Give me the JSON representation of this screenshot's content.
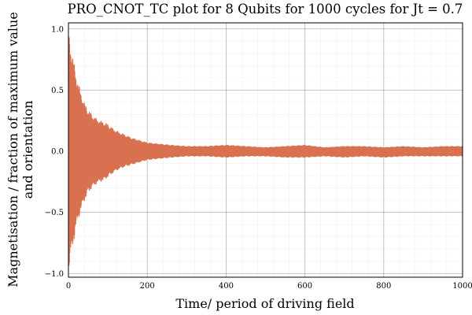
{
  "chart_data": {
    "type": "line",
    "title": "PRO_CNOT_TC plot for 8 Qubits for 1000 cycles for Jt = 0.7",
    "xlabel": "Time/ period of driving field",
    "ylabel_line1": "Magnetisation / fraction of maximum value",
    "ylabel_line2": "and orientation",
    "xlim": [
      0,
      1000
    ],
    "ylim": [
      -1.03,
      1.05
    ],
    "xticks": [
      0,
      200,
      400,
      600,
      800,
      1000
    ],
    "xtick_labels": [
      "0",
      "200",
      "400",
      "600",
      "800",
      "1000"
    ],
    "yticks": [
      -1.0,
      -0.5,
      0.0,
      0.5,
      1.0
    ],
    "ytick_labels": [
      "−1.0",
      "−0.5",
      "0.0",
      "0.5",
      "1.0"
    ],
    "grid": true,
    "legend": "none",
    "series_color": "#d9704f",
    "series": [
      {
        "note": "rapidly alternating signal; envelope (positive half-amplitude) sampled at x",
        "x": [
          0,
          10,
          20,
          30,
          40,
          50,
          60,
          70,
          80,
          90,
          100,
          120,
          140,
          160,
          180,
          200,
          230,
          260,
          300,
          350,
          400,
          450,
          500,
          550,
          600,
          650,
          700,
          750,
          800,
          850,
          900,
          950,
          1000
        ],
        "envelope_upper": [
          0.98,
          0.8,
          0.62,
          0.5,
          0.4,
          0.34,
          0.3,
          0.27,
          0.25,
          0.24,
          0.22,
          0.17,
          0.14,
          0.11,
          0.09,
          0.07,
          0.06,
          0.05,
          0.04,
          0.04,
          0.05,
          0.04,
          0.03,
          0.04,
          0.05,
          0.03,
          0.04,
          0.04,
          0.03,
          0.04,
          0.03,
          0.04,
          0.04
        ],
        "envelope_lower": [
          -0.98,
          -0.8,
          -0.62,
          -0.5,
          -0.41,
          -0.34,
          -0.3,
          -0.27,
          -0.25,
          -0.24,
          -0.21,
          -0.16,
          -0.13,
          -0.11,
          -0.09,
          -0.07,
          -0.06,
          -0.05,
          -0.04,
          -0.04,
          -0.05,
          -0.04,
          -0.04,
          -0.05,
          -0.05,
          -0.04,
          -0.05,
          -0.04,
          -0.05,
          -0.04,
          -0.04,
          -0.04,
          -0.04
        ],
        "center": [
          0.0,
          0.0,
          0.0,
          0.0,
          0.0,
          0.0,
          0.0,
          0.0,
          0.0,
          0.0,
          0.0,
          0.0,
          0.0,
          0.0,
          0.0,
          0.0,
          0.0,
          0.0,
          0.0,
          0.0,
          0.0,
          0.0,
          0.0,
          0.0,
          0.0,
          0.0,
          0.0,
          0.0,
          0.0,
          0.0,
          0.0,
          0.0,
          0.0
        ]
      }
    ]
  }
}
